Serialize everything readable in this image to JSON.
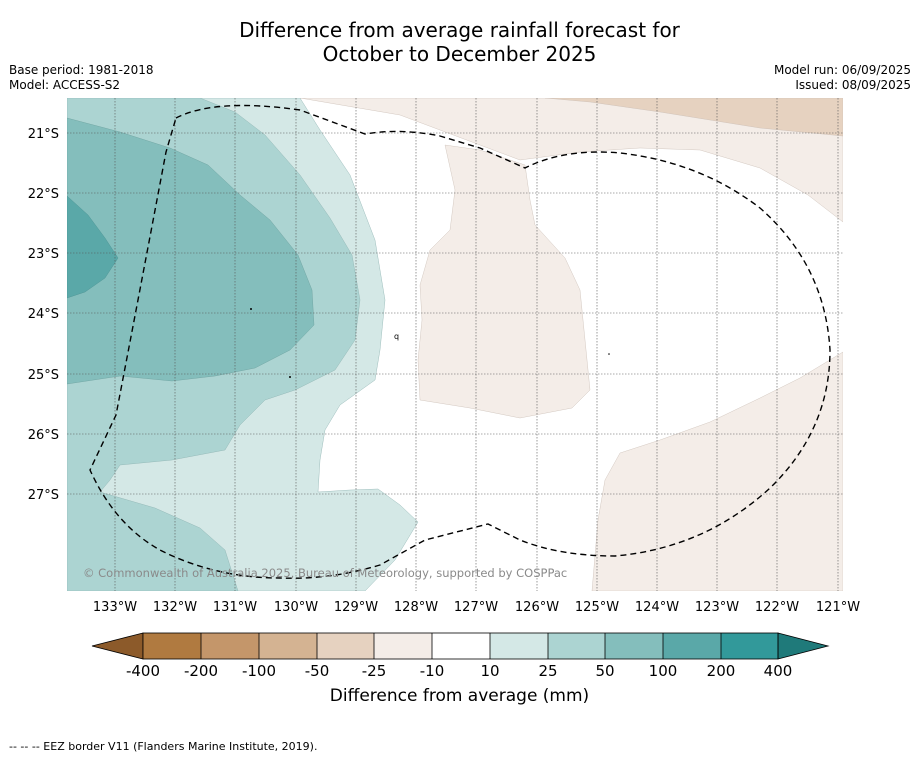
{
  "title": {
    "line1": "Difference from average rainfall forecast for",
    "line2": "October to December 2025"
  },
  "meta": {
    "base_period": "Base period: 1981-2018",
    "model": "Model: ACCESS-S2",
    "model_run": "Model run: 06/09/2025",
    "issued": "Issued: 08/09/2025"
  },
  "map": {
    "lat_labels": [
      "21°S",
      "22°S",
      "23°S",
      "24°S",
      "25°S",
      "26°S",
      "27°S"
    ],
    "lon_labels": [
      "133°W",
      "132°W",
      "131°W",
      "130°W",
      "129°W",
      "128°W",
      "127°W",
      "126°W",
      "125°W",
      "124°W",
      "123°W",
      "122°W",
      "121°W"
    ],
    "copyright": "© Commonwealth of Australia 2025, Bureau of Meteorology, supported by COSPPac",
    "eez_line_color": "#000000"
  },
  "colorbar": {
    "ticks": [
      "-400",
      "-200",
      "-100",
      "-50",
      "-25",
      "-10",
      "10",
      "25",
      "50",
      "100",
      "200",
      "400"
    ],
    "colors": [
      "#8c5a2a",
      "#b07a40",
      "#c4966a",
      "#d4b392",
      "#e6d2c0",
      "#f4ede8",
      "#ffffff",
      "#d4e8e6",
      "#acd4d2",
      "#84bebc",
      "#5aa8a8",
      "#32999a",
      "#1f7a7a"
    ],
    "label": "Difference from average (mm)"
  },
  "footnote": "--  --  -- EEZ border V11 (Flanders Marine Institute, 2019)."
}
